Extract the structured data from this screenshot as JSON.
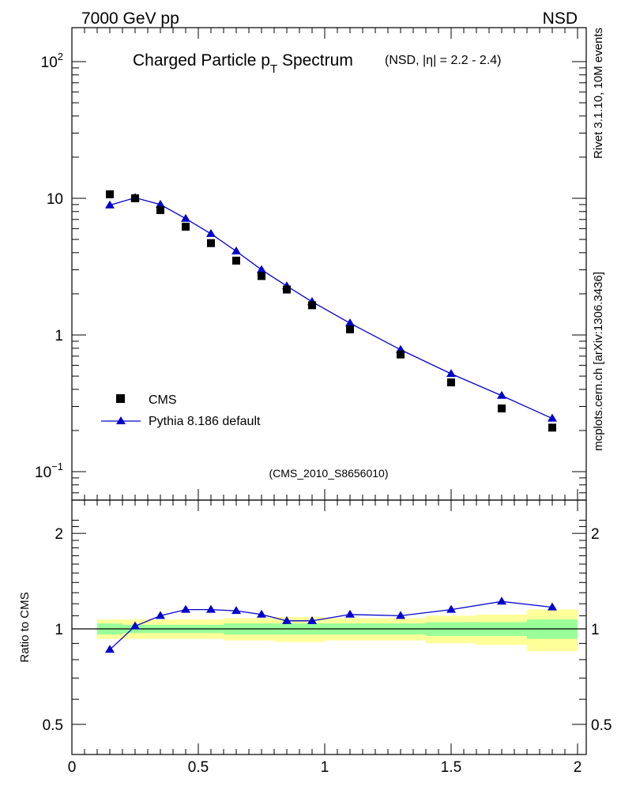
{
  "header": {
    "left": "7000 GeV pp",
    "right": "NSD"
  },
  "side_labels": {
    "rivet": "Rivet 3.1.10,  10M events",
    "url": "mcplots.cern.ch [arXiv:1306.3436]"
  },
  "title": {
    "main_prefix": "Charged Particle p",
    "main_sub": "T",
    "main_suffix": " Spectrum",
    "cond_prefix": "(NSD, |",
    "cond_eta": "η",
    "cond_suffix": "| = 2.2 - 2.4)"
  },
  "analysis_tag": "(CMS_2010_S8656010)",
  "legend": {
    "position": "lower-left",
    "entries": [
      {
        "label": "CMS"
      },
      {
        "label": "Pythia 8.186 default"
      }
    ]
  },
  "colors": {
    "data": "#000000",
    "mc": "#0000cc",
    "band_inner": "#99ff99",
    "band_outer": "#ffff99",
    "side_text": "#777777",
    "tag_text": "#999999"
  },
  "chart_data": [
    {
      "type": "scatter",
      "panel": "main",
      "y_scale": "log",
      "xlim": [
        0,
        2
      ],
      "ylim": [
        0.065,
        180
      ],
      "y_ticks": [
        {
          "value": 100,
          "base": "10",
          "exp": "2"
        },
        {
          "value": 10,
          "label": "10"
        },
        {
          "value": 1,
          "label": "1"
        },
        {
          "value": 0.1,
          "base": "10",
          "exp": "−1"
        }
      ],
      "series": [
        {
          "name": "CMS",
          "marker": "square",
          "x": [
            0.15,
            0.25,
            0.35,
            0.45,
            0.55,
            0.65,
            0.75,
            0.85,
            0.95,
            1.1,
            1.3,
            1.5,
            1.7,
            1.9
          ],
          "y": [
            10.7,
            10.0,
            8.2,
            6.2,
            4.7,
            3.5,
            2.7,
            2.15,
            1.65,
            1.1,
            0.72,
            0.45,
            0.29,
            0.21
          ]
        },
        {
          "name": "Pythia 8.186 default",
          "marker": "triangle",
          "line": true,
          "x": [
            0.15,
            0.25,
            0.35,
            0.45,
            0.55,
            0.65,
            0.75,
            0.85,
            0.95,
            1.1,
            1.3,
            1.5,
            1.7,
            1.9
          ],
          "y": [
            8.9,
            10.1,
            9.0,
            7.1,
            5.5,
            4.1,
            3.0,
            2.28,
            1.75,
            1.22,
            0.78,
            0.52,
            0.36,
            0.245
          ]
        }
      ]
    },
    {
      "type": "line",
      "panel": "ratio",
      "ylabel": "Ratio to CMS",
      "xlim": [
        0,
        2
      ],
      "ylim": [
        0.4,
        2.25
      ],
      "x_ticks": [
        "0",
        "0.5",
        "1",
        "1.5",
        "2"
      ],
      "y_ticks": [
        0.5,
        1,
        2
      ],
      "y_tick_labels": [
        "0.5",
        "1",
        "2"
      ],
      "bins": [
        0.1,
        0.2,
        0.3,
        0.4,
        0.5,
        0.6,
        0.7,
        0.8,
        0.9,
        1.0,
        1.2,
        1.4,
        1.6,
        1.8,
        2.0
      ],
      "band_outer": {
        "lo": [
          0.93,
          0.93,
          0.93,
          0.93,
          0.93,
          0.92,
          0.92,
          0.91,
          0.91,
          0.92,
          0.92,
          0.9,
          0.89,
          0.85
        ],
        "hi": [
          1.07,
          1.07,
          1.07,
          1.07,
          1.07,
          1.08,
          1.08,
          1.09,
          1.09,
          1.08,
          1.08,
          1.1,
          1.11,
          1.15
        ]
      },
      "band_inner": {
        "lo": [
          0.96,
          0.97,
          0.97,
          0.97,
          0.97,
          0.96,
          0.96,
          0.96,
          0.96,
          0.96,
          0.96,
          0.95,
          0.95,
          0.93
        ],
        "hi": [
          1.04,
          1.03,
          1.03,
          1.03,
          1.03,
          1.04,
          1.04,
          1.04,
          1.04,
          1.04,
          1.04,
          1.05,
          1.05,
          1.07
        ]
      },
      "series": [
        {
          "name": "Pythia 8.186 default",
          "x": [
            0.15,
            0.25,
            0.35,
            0.45,
            0.55,
            0.65,
            0.75,
            0.85,
            0.95,
            1.1,
            1.3,
            1.5,
            1.7,
            1.9
          ],
          "y": [
            0.86,
            1.02,
            1.1,
            1.15,
            1.15,
            1.14,
            1.11,
            1.06,
            1.06,
            1.11,
            1.1,
            1.15,
            1.22,
            1.17
          ]
        }
      ]
    }
  ]
}
